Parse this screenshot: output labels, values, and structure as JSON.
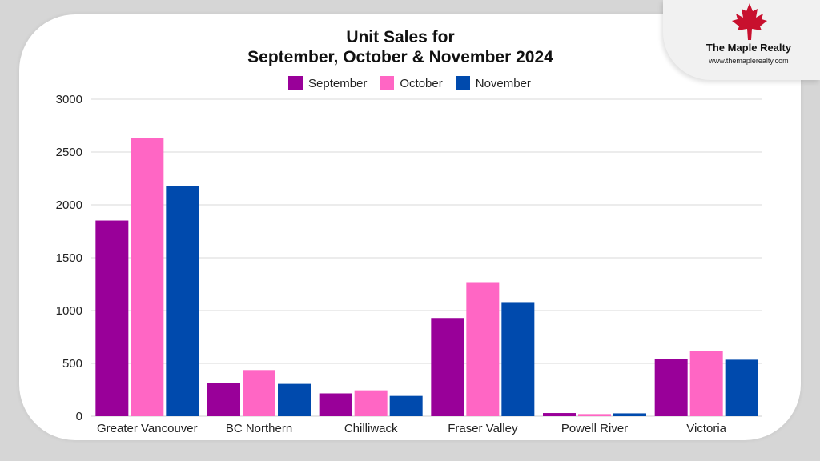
{
  "brand": {
    "name": "The Maple Realty",
    "url": "www.themaplerealty.com",
    "logo_icon": "maple-leaf-icon",
    "logo_color": "#c8102e"
  },
  "chart_data": {
    "type": "bar",
    "title_line1": "Unit Sales for",
    "title_line2": "September, October & November 2024",
    "xlabel": "",
    "ylabel": "",
    "categories": [
      "Greater Vancouver",
      "BC Northern",
      "Chilliwack",
      "Fraser Valley",
      "Powell River",
      "Victoria"
    ],
    "series": [
      {
        "name": "September",
        "color": "#990099",
        "values": [
          1852,
          318,
          216,
          930,
          30,
          545
        ]
      },
      {
        "name": "October",
        "color": "#ff66c4",
        "values": [
          2632,
          437,
          245,
          1269,
          20,
          620
        ]
      },
      {
        "name": "November",
        "color": "#004aad",
        "values": [
          2181,
          306,
          192,
          1080,
          27,
          535
        ]
      }
    ],
    "ylim": [
      0,
      3000
    ],
    "yticks": [
      "0",
      "500",
      "1000",
      "1500",
      "2000",
      "2500",
      "3000"
    ],
    "grid": true,
    "legend_position": "top-center"
  }
}
